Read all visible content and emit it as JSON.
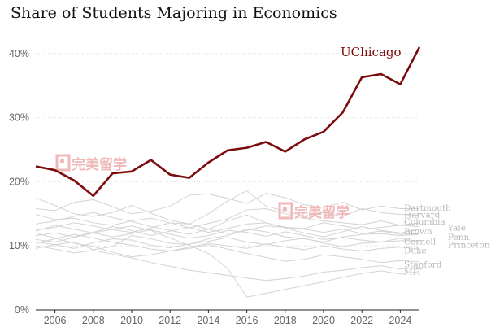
{
  "chart_data": {
    "type": "line",
    "title": "Share of Students Majoring in Economics",
    "x_ticks": [
      2006,
      2008,
      2010,
      2012,
      2014,
      2016,
      2018,
      2020,
      2022,
      2024
    ],
    "y_ticks": [
      "0%",
      "10%",
      "20%",
      "30%",
      "40%"
    ],
    "xlim": [
      2005,
      2025
    ],
    "ylim": [
      0,
      42
    ],
    "grid": "horizontal",
    "highlight": {
      "name": "UChicago",
      "color": "#7c0c0c",
      "x": [
        2005,
        2006,
        2007,
        2008,
        2009,
        2010,
        2011,
        2012,
        2013,
        2014,
        2015,
        2016,
        2017,
        2018,
        2019,
        2020,
        2021,
        2022,
        2023,
        2024,
        2025
      ],
      "values": [
        22.4,
        21.8,
        20.2,
        17.8,
        21.3,
        21.6,
        23.4,
        21.1,
        20.6,
        23.0,
        24.9,
        25.3,
        26.2,
        24.7,
        26.6,
        27.8,
        30.8,
        36.3,
        36.8,
        35.2,
        41.0
      ]
    },
    "background_series": [
      {
        "name": "Dartmouth",
        "values": [
          15.8,
          15.5,
          16.8,
          17.2,
          16.1,
          15.0,
          15.4,
          16.2,
          17.9,
          18.1,
          17.4,
          16.6,
          18.2,
          17.5,
          16.4,
          16.0,
          16.8,
          15.6,
          16.2,
          15.8,
          15.8
        ]
      },
      {
        "name": "Harvard",
        "values": [
          17.5,
          16.3,
          15.0,
          14.6,
          15.2,
          16.3,
          15.1,
          14.0,
          13.4,
          15.0,
          17.0,
          18.6,
          16.2,
          15.4,
          14.6,
          15.2,
          14.6,
          15.8,
          15.2,
          14.9,
          14.8
        ]
      },
      {
        "name": "Columbia",
        "values": [
          14.9,
          14.1,
          14.3,
          13.6,
          13.2,
          13.9,
          14.3,
          13.6,
          12.8,
          13.5,
          14.2,
          15.6,
          15.8,
          15.0,
          14.3,
          13.9,
          13.6,
          13.3,
          13.9,
          13.2,
          13.6
        ]
      },
      {
        "name": "Yale",
        "values": [
          11.6,
          12.0,
          11.4,
          12.1,
          13.0,
          12.4,
          11.6,
          12.3,
          12.9,
          12.1,
          12.7,
          13.4,
          13.6,
          12.9,
          12.7,
          13.6,
          13.1,
          12.6,
          12.9,
          13.2,
          13.0
        ]
      },
      {
        "name": "Brown",
        "values": [
          9.6,
          10.2,
          10.6,
          9.4,
          9.9,
          11.6,
          11.1,
          10.4,
          10.2,
          11.1,
          11.6,
          12.6,
          12.2,
          11.4,
          11.1,
          10.6,
          11.4,
          11.8,
          11.9,
          11.6,
          11.8
        ]
      },
      {
        "name": "Penn",
        "values": [
          12.5,
          12.9,
          13.6,
          13.1,
          12.5,
          12.1,
          12.8,
          13.6,
          13.4,
          12.6,
          11.9,
          12.4,
          13.1,
          12.9,
          12.6,
          12.1,
          12.6,
          11.9,
          12.3,
          11.8,
          11.9
        ]
      },
      {
        "name": "Cornell",
        "values": [
          10.6,
          10.2,
          9.6,
          10.5,
          11.1,
          10.9,
          10.1,
          9.7,
          10.3,
          10.7,
          11.3,
          10.6,
          10.2,
          10.8,
          11.2,
          10.4,
          9.9,
          10.4,
          10.6,
          10.8,
          10.8
        ]
      },
      {
        "name": "Princeton",
        "values": [
          12.3,
          13.2,
          12.6,
          12.0,
          11.4,
          11.9,
          12.5,
          11.8,
          11.2,
          11.6,
          12.4,
          12.1,
          11.5,
          12.2,
          11.6,
          11.0,
          11.3,
          10.9,
          10.6,
          11.2,
          10.5
        ]
      },
      {
        "name": "Duke",
        "values": [
          10.4,
          11.1,
          11.8,
          11.2,
          10.6,
          10.1,
          9.5,
          9.2,
          9.8,
          10.4,
          10.0,
          9.6,
          10.3,
          9.8,
          9.4,
          10.0,
          9.5,
          9.2,
          9.6,
          9.8,
          9.5
        ]
      },
      {
        "name": "Stanford",
        "values": [
          12.0,
          11.2,
          10.4,
          9.9,
          9.0,
          8.3,
          8.6,
          9.2,
          9.6,
          10.2,
          9.5,
          8.8,
          8.2,
          7.6,
          7.9,
          8.6,
          8.3,
          7.9,
          7.4,
          7.7,
          7.5
        ]
      },
      {
        "name": "MIT",
        "values": [
          10.0,
          9.5,
          8.9,
          9.3,
          8.7,
          8.1,
          7.4,
          6.8,
          6.2,
          5.8,
          5.4,
          5.0,
          4.6,
          4.9,
          5.3,
          5.9,
          6.2,
          6.6,
          6.9,
          6.4,
          6.6
        ]
      },
      {
        "name": "",
        "values": [
          11.0,
          10.6,
          11.3,
          12.0,
          12.6,
          13.1,
          12.4,
          11.2,
          10.1,
          8.8,
          6.5,
          2.0,
          2.6,
          3.2,
          3.8,
          4.4,
          5.1,
          5.7,
          6.1,
          5.6,
          6.0
        ]
      },
      {
        "name": "",
        "values": [
          13.4,
          13.9,
          14.6,
          15.2,
          14.4,
          13.8,
          13.0,
          12.4,
          11.8,
          12.6,
          13.9,
          14.8,
          13.6,
          12.8,
          12.0,
          11.4,
          12.2,
          13.0,
          12.4,
          12.0,
          12.6
        ]
      }
    ],
    "label_positions": [
      {
        "name": "Dartmouth",
        "y": 16.0
      },
      {
        "name": "Harvard",
        "y": 14.9
      },
      {
        "name": "Columbia",
        "y": 13.8
      },
      {
        "name": "Yale",
        "y": 12.9
      },
      {
        "name": "Brown",
        "y": 12.3
      },
      {
        "name": "Penn",
        "y": 11.4
      },
      {
        "name": "Cornell",
        "y": 10.7
      },
      {
        "name": "Princeton",
        "y": 10.2
      },
      {
        "name": "Duke",
        "y": 9.3
      },
      {
        "name": "Stanford",
        "y": 7.2
      },
      {
        "name": "MIT",
        "y": 6.0
      }
    ]
  },
  "watermark": "完美留学"
}
